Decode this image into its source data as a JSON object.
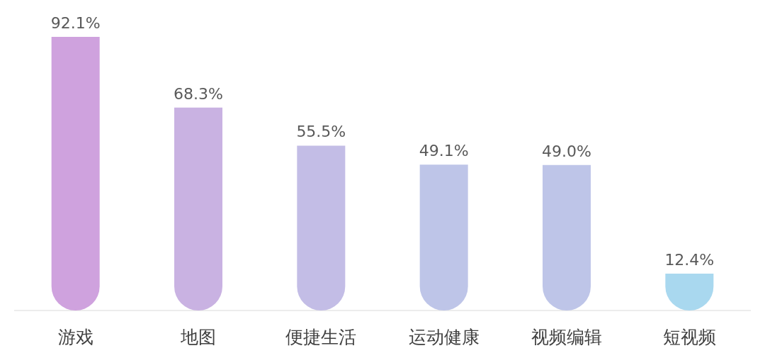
{
  "chart_data": {
    "type": "bar",
    "categories": [
      "游戏",
      "地图",
      "便捷生活",
      "运动健康",
      "视频编辑",
      "短视频"
    ],
    "values": [
      92.1,
      68.3,
      55.5,
      49.1,
      49.0,
      12.4
    ],
    "colors": [
      "#cfa2de",
      "#c9b2e2",
      "#c3bde6",
      "#bec5e8",
      "#bec5e8",
      "#a9d8ef"
    ],
    "value_labels": [
      "92.1%",
      "68.3%",
      "55.5%",
      "49.1%",
      "49.0%",
      "12.4%"
    ]
  }
}
